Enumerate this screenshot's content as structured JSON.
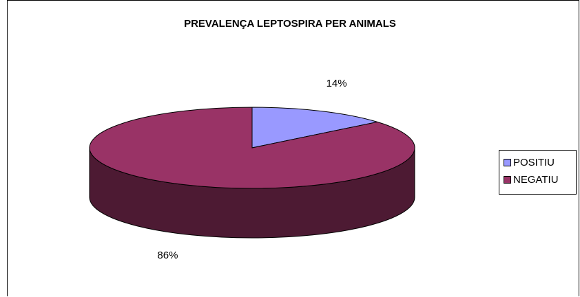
{
  "chart_data": {
    "type": "pie",
    "title": "PREVALENÇA LEPTOSPIRA PER ANIMALS",
    "slices": [
      {
        "label": "POSITIU",
        "value": 14,
        "display": "14%",
        "color": "#9999ff",
        "side_color": "#4d4d80"
      },
      {
        "label": "NEGATIU",
        "value": 86,
        "display": "86%",
        "color": "#993366",
        "side_color": "#4d1a33"
      }
    ],
    "three_d": true,
    "legend_position": "right"
  }
}
